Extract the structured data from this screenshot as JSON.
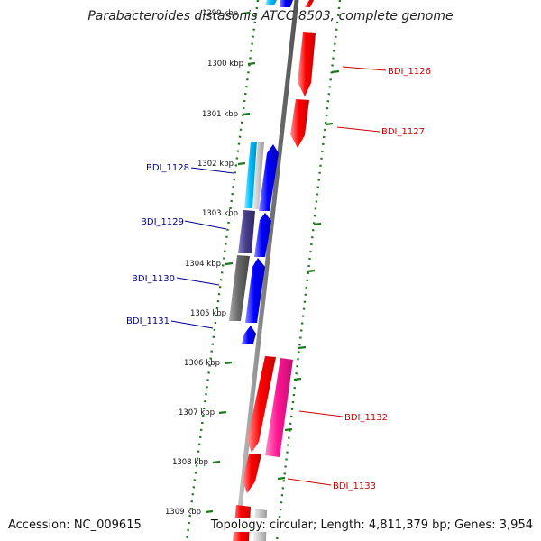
{
  "title": "Parabacteroides distasonis ATCC 8503, complete genome",
  "footer": {
    "accession": "Accession: NC_009615",
    "stats": "Topology: circular; Length: 4,811,379 bp; Genes: 3,954"
  },
  "scale": {
    "labels": [
      {
        "text": "1299 kbp",
        "kbp": 1299
      },
      {
        "text": "1300 kbp",
        "kbp": 1300
      },
      {
        "text": "1301 kbp",
        "kbp": 1301
      },
      {
        "text": "1302 kbp",
        "kbp": 1302
      },
      {
        "text": "1303 kbp",
        "kbp": 1303
      },
      {
        "text": "1304 kbp",
        "kbp": 1304
      },
      {
        "text": "1305 kbp",
        "kbp": 1305
      },
      {
        "text": "1306 kbp",
        "kbp": 1306
      },
      {
        "text": "1307 kbp",
        "kbp": 1307
      },
      {
        "text": "1308 kbp",
        "kbp": 1308
      },
      {
        "text": "1309 kbp",
        "kbp": 1309
      }
    ]
  },
  "gene_labels": {
    "left": [
      "BDI_1128",
      "BDI_1129",
      "BDI_1130",
      "BDI_1131"
    ],
    "right": [
      "BDI_1126",
      "BDI_1127",
      "BDI_1132",
      "BDI_1133"
    ]
  },
  "colors": {
    "backbone": "#7a7a7a",
    "dots": "#1a7a1a",
    "ticks": "#1a7a1a",
    "left_label": "#00008b",
    "right_label": "#cc0000",
    "cds_red": "#ff0000",
    "cds_blue": "#0000ff",
    "cds_cyan": "#00bfff",
    "cds_purple": "#483d8b",
    "cds_gray": "#696969",
    "cds_pink": "#ff1493",
    "cds_silver": "#c8c8c8"
  }
}
